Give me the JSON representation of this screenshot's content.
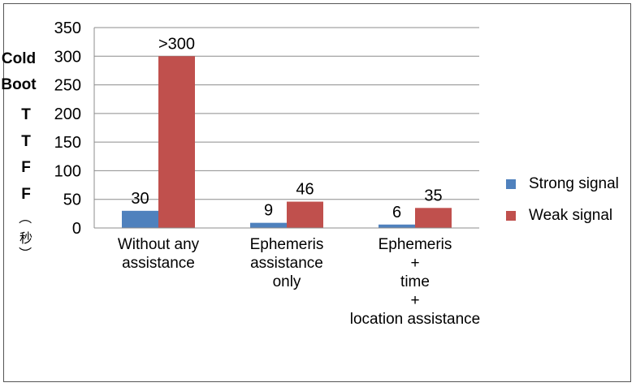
{
  "chart_data": {
    "type": "bar",
    "categories": [
      [
        "Without any",
        "assistance"
      ],
      [
        "Ephemeris",
        "assistance",
        "only"
      ],
      [
        "Ephemeris",
        "+",
        "time",
        "+",
        "location assistance"
      ]
    ],
    "series": [
      {
        "name": "Strong signal",
        "values": [
          30,
          9,
          6
        ],
        "labels": [
          "30",
          "9",
          "6"
        ],
        "color": "#4f81bd"
      },
      {
        "name": "Weak signal",
        "values": [
          300,
          46,
          35
        ],
        "labels": [
          ">300",
          "46",
          "35"
        ],
        "color": "#c0504d"
      }
    ],
    "ylabel": {
      "line1": "Cold",
      "line2": "Boot",
      "letters": [
        "T",
        "T",
        "F",
        "F"
      ],
      "unit": [
        "（",
        "秒",
        "）"
      ]
    },
    "ylim": [
      0,
      350
    ],
    "yticks": [
      0,
      50,
      100,
      150,
      200,
      250,
      300,
      350
    ],
    "grid": true,
    "legend_position": "right"
  }
}
